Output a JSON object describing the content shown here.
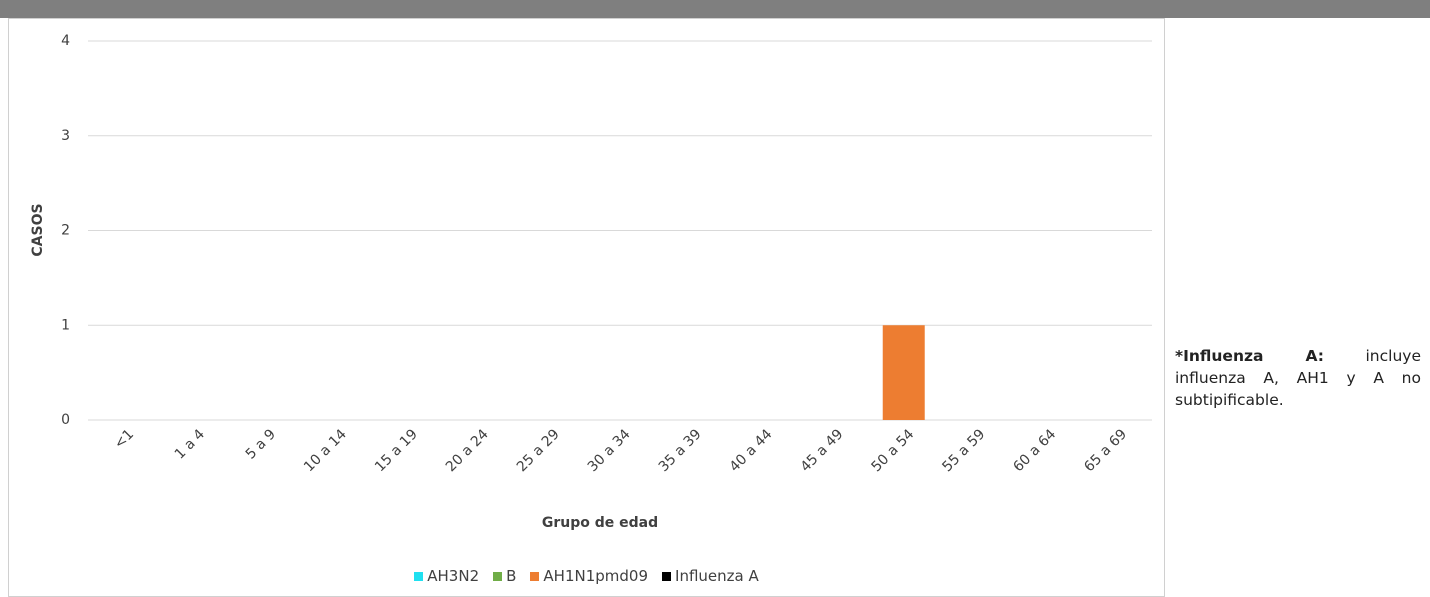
{
  "chart_data": {
    "type": "stacked_bar",
    "x_label": "Grupo de edad",
    "y_label": "CASOS",
    "categories": [
      "<1",
      "1 a 4",
      "5 a 9",
      "10 a 14",
      "15 a 19",
      "20 a 24",
      "25 a 29",
      "30 a 34",
      "35 a 39",
      "40 a 44",
      "45 a 49",
      "50 a 54",
      "55 a 59",
      "60 a 64",
      "65 a 69"
    ],
    "series": [
      {
        "name": "AH3N2",
        "color": "#1fe0f0",
        "values": [
          0,
          0,
          0,
          0,
          0,
          0,
          0,
          0,
          0,
          0,
          0,
          0,
          0,
          0,
          0
        ]
      },
      {
        "name": "B",
        "color": "#70ad47",
        "values": [
          0,
          0,
          0,
          0,
          0,
          0,
          0,
          0,
          0,
          0,
          0,
          0,
          0,
          0,
          0
        ]
      },
      {
        "name": "AH1N1pmd09",
        "color": "#ed7d31",
        "values": [
          0,
          0,
          0,
          0,
          0,
          0,
          0,
          0,
          0,
          0,
          0,
          1,
          0,
          0,
          0
        ]
      },
      {
        "name": "Influenza A",
        "color": "#000000",
        "values": [
          0,
          0,
          0,
          0,
          0,
          0,
          0,
          0,
          0,
          0,
          0,
          0,
          0,
          0,
          0
        ]
      }
    ],
    "ylim": [
      0,
      4
    ],
    "yticks": [
      0,
      1,
      2,
      3,
      4
    ],
    "grid": true,
    "legend": "bottom",
    "note_label": "*Influenza A:",
    "note_text": "incluye influenza A, AH1 y A no subtipificable."
  }
}
